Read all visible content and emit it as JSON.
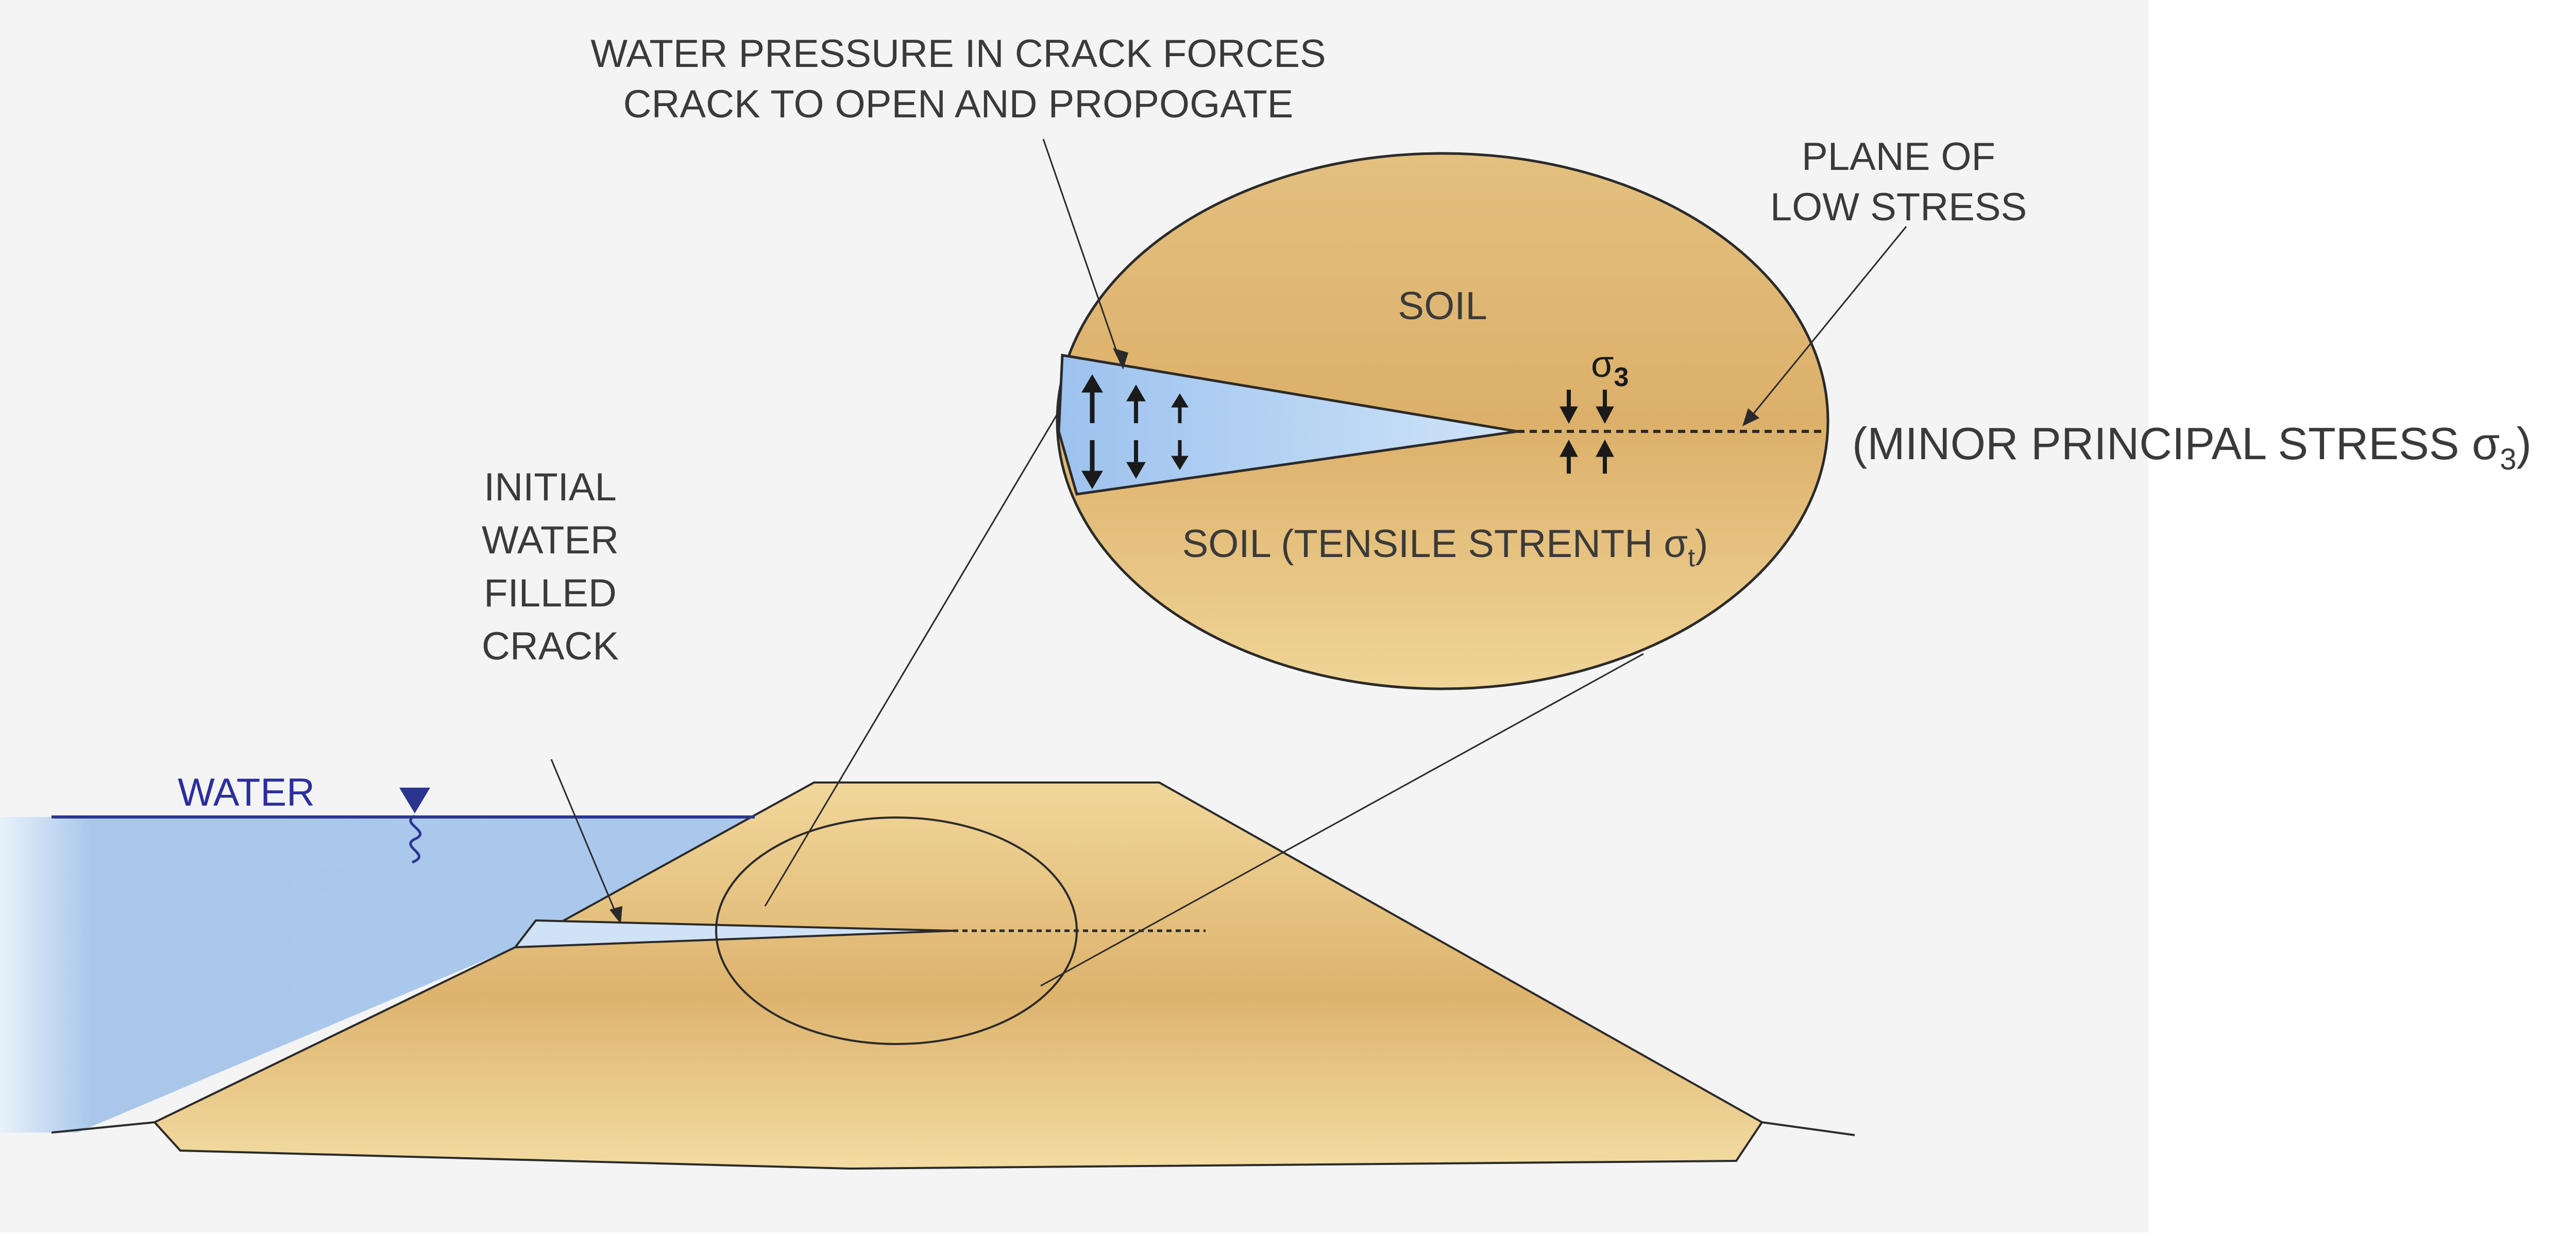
{
  "labels": {
    "water_pressure_line1": "WATER PRESSURE IN CRACK FORCES",
    "water_pressure_line2": "CRACK TO OPEN AND PROPOGATE",
    "plane_line1": "PLANE OF",
    "plane_line2": "LOW STRESS",
    "soil_top": "SOIL",
    "soil_bottom_text": "SOIL (TENSILE STRENTH ",
    "soil_bottom_symbol": "σ",
    "soil_bottom_sub": "t",
    "soil_bottom_close": ")",
    "minor_stress_text": "(MINOR PRINCIPAL STRESS ",
    "minor_stress_symbol": "σ",
    "minor_stress_sub": "3",
    "minor_stress_close": ")",
    "sigma3_symbol": "σ",
    "sigma3_sub": "3",
    "initial_crack": [
      "INITIAL",
      "WATER",
      "FILLED",
      "CRACK"
    ],
    "water": "WATER"
  },
  "icons": {
    "water_level_marker": "inverted-triangle-icon",
    "stress_arrows": "arrow-icon"
  },
  "colors": {
    "background_panel": "#f4f4f4",
    "soil_light": "#f1d79b",
    "soil_dark": "#ddb36d",
    "water_light": "#cfe3f7",
    "water_dark": "#8fb5e3",
    "water_line": "#2b3590",
    "outline": "#2a2a2a"
  }
}
